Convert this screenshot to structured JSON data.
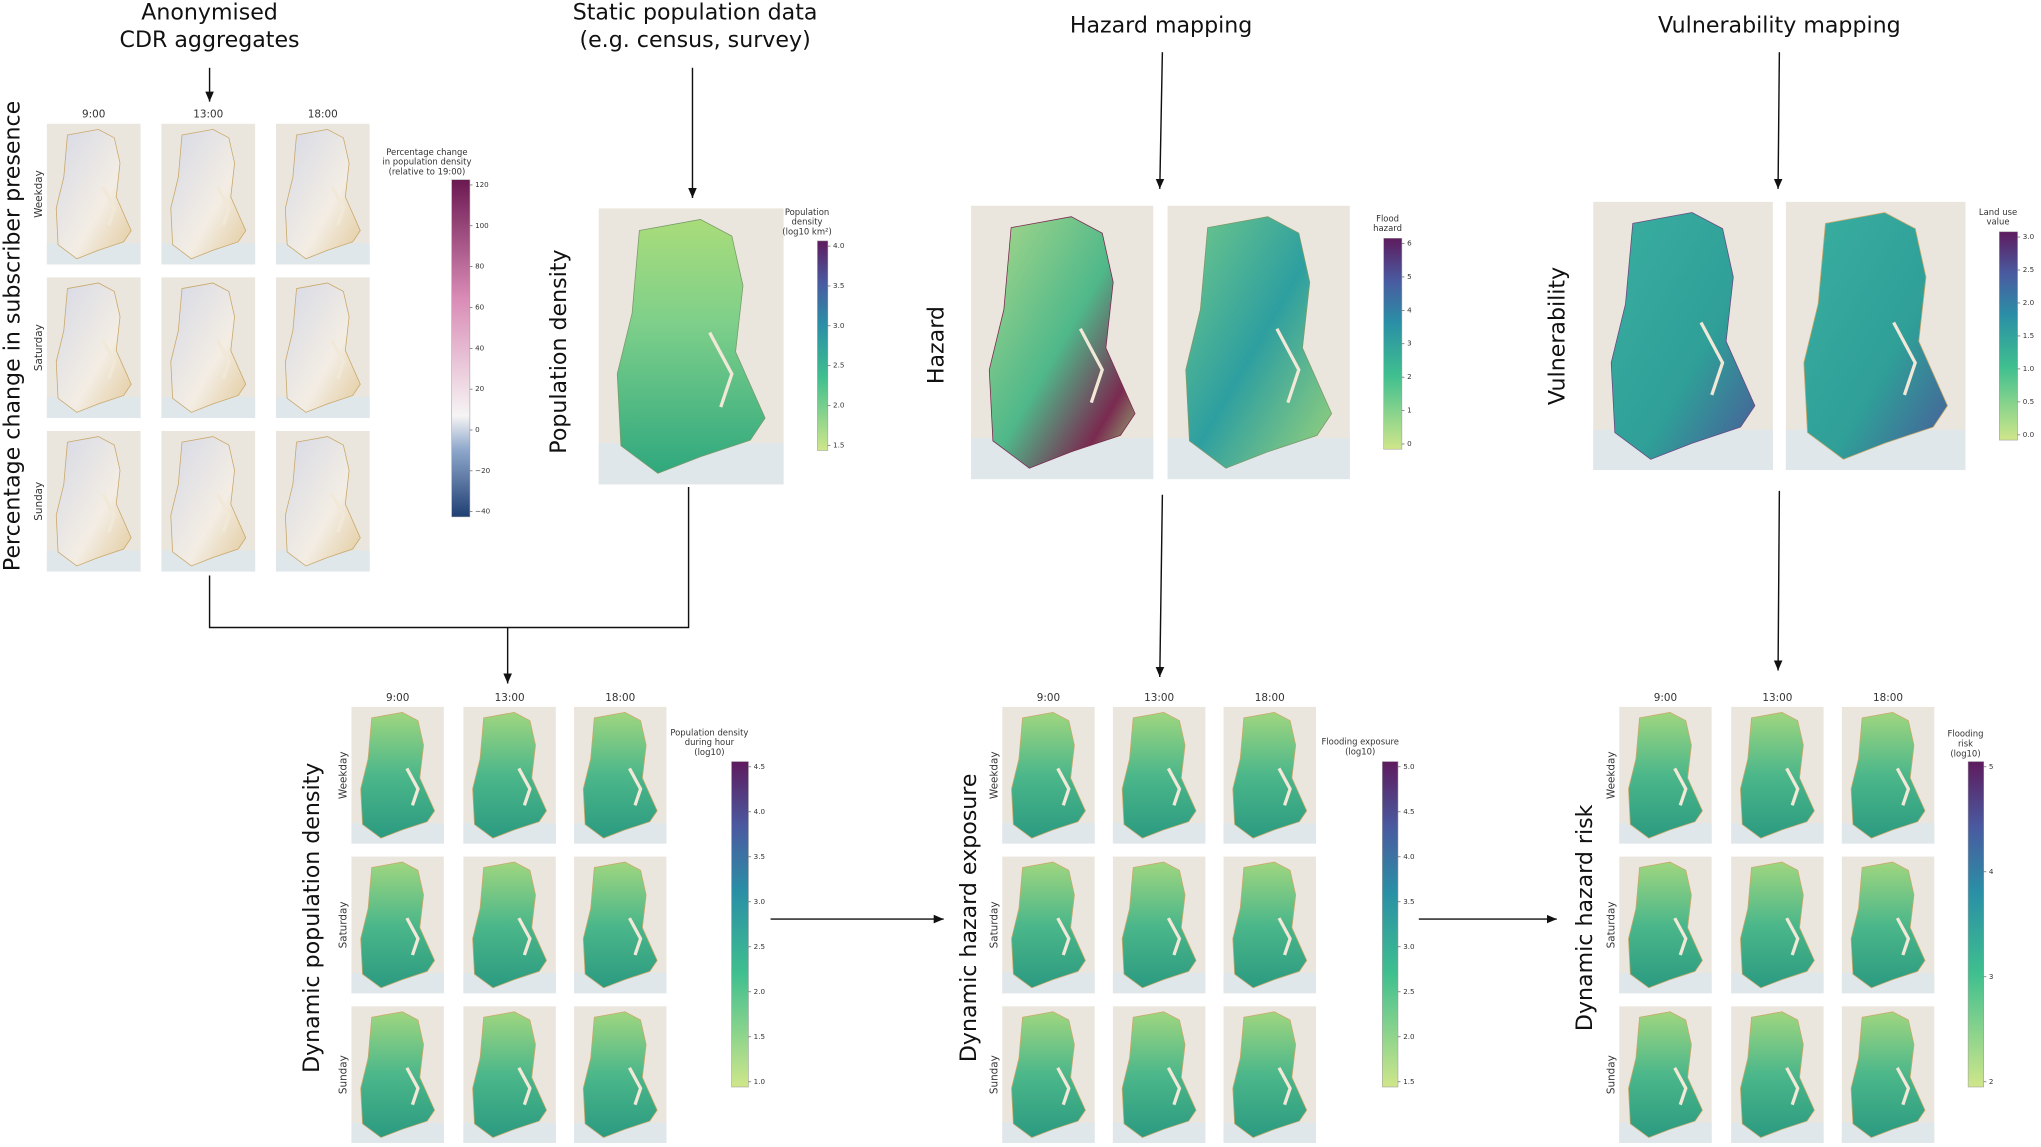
{
  "cdr": {
    "header": [
      "Anonymised",
      "CDR aggregates"
    ],
    "label": "Percentage change in subscriber presence",
    "columns": [
      "9:00",
      "13:00",
      "18:00"
    ],
    "rows": [
      "Weekday",
      "Saturday",
      "Sunday"
    ],
    "colorbar": {
      "label": [
        "Percentage change",
        "in population density",
        "(relative to 19:00)"
      ],
      "ticks": [
        "120",
        "100",
        "80",
        "60",
        "40",
        "20",
        "0",
        "−20",
        "−40"
      ]
    }
  },
  "population": {
    "header": [
      "Static population data",
      "(e.g. census, survey)"
    ],
    "label": "Population density",
    "colorbar": {
      "label": [
        "Population",
        "density",
        "(log10 km²)"
      ],
      "ticks": [
        "4.0",
        "3.5",
        "3.0",
        "2.5",
        "2.0",
        "1.5"
      ]
    }
  },
  "hazard": {
    "header": [
      "Hazard mapping"
    ],
    "label": "Hazard",
    "colorbar": {
      "label": [
        "Flood",
        "hazard"
      ],
      "ticks": [
        "6",
        "5",
        "4",
        "3",
        "2",
        "1",
        "0"
      ]
    }
  },
  "vulnerability": {
    "header": [
      "Vulnerability mapping"
    ],
    "label": "Vulnerability",
    "colorbar": {
      "label": [
        "Land use",
        "value"
      ],
      "ticks": [
        "3.0",
        "2.5",
        "2.0",
        "1.5",
        "1.0",
        "0.5",
        "0.0"
      ]
    }
  },
  "dynamic_population": {
    "label": "Dynamic population density",
    "columns": [
      "9:00",
      "13:00",
      "18:00"
    ],
    "rows": [
      "Weekday",
      "Saturday",
      "Sunday"
    ],
    "colorbar": {
      "label": [
        "Population density",
        "during hour",
        "(log10)"
      ],
      "ticks": [
        "4.5",
        "4.0",
        "3.5",
        "3.0",
        "2.5",
        "2.0",
        "1.5",
        "1.0"
      ]
    }
  },
  "dynamic_exposure": {
    "label": "Dynamic hazard exposure",
    "columns": [
      "9:00",
      "13:00",
      "18:00"
    ],
    "rows": [
      "Weekday",
      "Saturday",
      "Sunday"
    ],
    "colorbar": {
      "label": [
        "Flooding exposure",
        "(log10)"
      ],
      "ticks": [
        "5.0",
        "4.5",
        "4.0",
        "3.5",
        "3.0",
        "2.5",
        "2.0",
        "1.5"
      ]
    }
  },
  "dynamic_risk": {
    "label": "Dynamic hazard risk",
    "columns": [
      "9:00",
      "13:00",
      "18:00"
    ],
    "rows": [
      "Weekday",
      "Saturday",
      "Sunday"
    ],
    "colorbar": {
      "label": [
        "Flooding",
        "risk",
        "(log10)"
      ],
      "ticks": [
        "5",
        "4",
        "3",
        "2"
      ]
    }
  }
}
